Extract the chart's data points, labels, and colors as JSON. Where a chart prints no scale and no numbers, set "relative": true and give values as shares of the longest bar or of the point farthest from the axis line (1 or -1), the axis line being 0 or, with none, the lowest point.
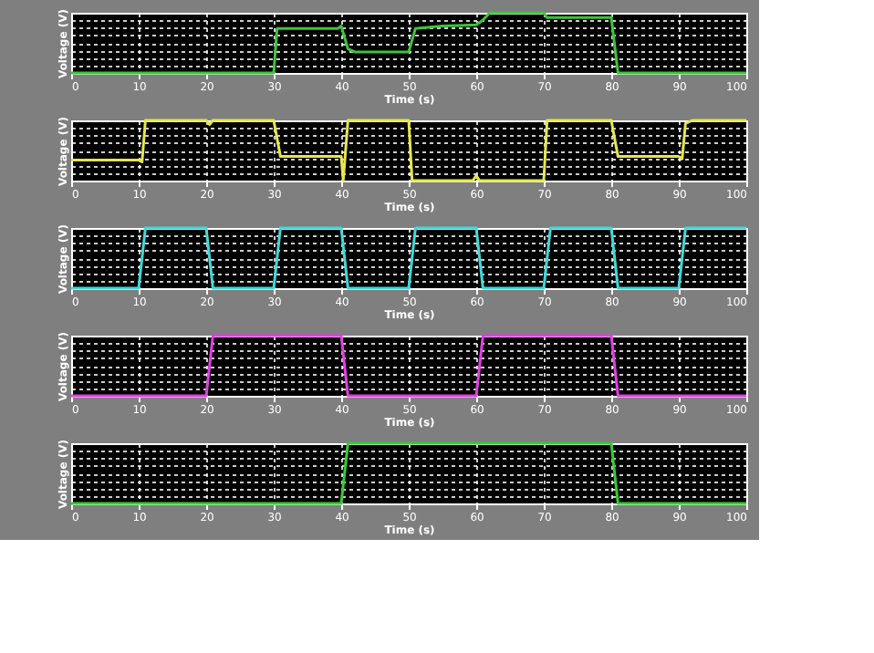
{
  "chart_data": [
    {
      "type": "line",
      "relative": true,
      "xlabel": "Time (s)",
      "ylabel": "Voltage (V)",
      "xlim": [
        0,
        100
      ],
      "xticks": [
        0,
        10,
        20,
        30,
        40,
        50,
        60,
        70,
        80,
        90,
        100
      ],
      "grid": true,
      "tick_labels": "x",
      "series": [
        {
          "color": "#3ec43e",
          "x": [
            0,
            30,
            30.5,
            39.5,
            40,
            41,
            42,
            50,
            51,
            55,
            60,
            61,
            62,
            70,
            70.5,
            80,
            81,
            100
          ],
          "values": [
            0,
            0,
            0.74,
            0.74,
            0.78,
            0.4,
            0.35,
            0.35,
            0.74,
            0.78,
            0.8,
            0.88,
            1,
            1,
            0.92,
            0.92,
            0,
            0
          ]
        }
      ]
    },
    {
      "type": "line",
      "relative": true,
      "xlabel": "Time (s)",
      "ylabel": "Voltage (V)",
      "xlim": [
        0,
        100
      ],
      "xticks": [
        0,
        10,
        20,
        30,
        40,
        50,
        60,
        70,
        80,
        90,
        100
      ],
      "grid": true,
      "tick_labels": "x",
      "series": [
        {
          "color": "#e6e64d",
          "x": [
            0,
            10,
            10.5,
            11,
            20,
            20.5,
            21,
            30,
            31,
            40,
            40.3,
            41,
            50,
            50.5,
            59.5,
            60,
            60.5,
            70,
            70.5,
            80,
            81,
            90,
            90.5,
            91,
            92,
            100
          ],
          "values": [
            0.34,
            0.34,
            0.31,
            1,
            1,
            0.93,
            1,
            1,
            0.4,
            0.4,
            0,
            1,
            1,
            0,
            0,
            0.08,
            0,
            0,
            1,
            1,
            0.4,
            0.4,
            0.36,
            0.95,
            1,
            1
          ]
        }
      ]
    },
    {
      "type": "line",
      "relative": true,
      "xlabel": "Time (s)",
      "ylabel": "Voltage (V)",
      "xlim": [
        0,
        100
      ],
      "xticks": [
        0,
        10,
        20,
        30,
        40,
        50,
        60,
        70,
        80,
        90,
        100
      ],
      "grid": true,
      "tick_labels": "x",
      "series": [
        {
          "color": "#40d8d8",
          "x": [
            0,
            10,
            11,
            20,
            21,
            30,
            31,
            40,
            41,
            50,
            51,
            60,
            61,
            70,
            71,
            80,
            81,
            90,
            91,
            100
          ],
          "values": [
            0,
            0,
            1,
            1,
            0,
            0,
            1,
            1,
            0,
            0,
            1,
            1,
            0,
            0,
            1,
            1,
            0,
            0,
            1,
            1
          ]
        }
      ]
    },
    {
      "type": "line",
      "relative": true,
      "xlabel": "Time (s)",
      "ylabel": "Voltage (V)",
      "xlim": [
        0,
        100
      ],
      "xticks": [
        0,
        10,
        20,
        30,
        40,
        50,
        60,
        70,
        80,
        90,
        100
      ],
      "grid": true,
      "tick_labels": "x",
      "series": [
        {
          "color": "#e040e0",
          "x": [
            0,
            20,
            21,
            40,
            41,
            60,
            61,
            80,
            81,
            100
          ],
          "values": [
            0,
            0,
            1,
            1,
            0,
            0,
            1,
            1,
            0,
            0
          ]
        }
      ]
    },
    {
      "type": "line",
      "relative": true,
      "xlabel": "Time (s)",
      "ylabel": "Voltage (V)",
      "xlim": [
        0,
        100
      ],
      "xticks": [
        0,
        10,
        20,
        30,
        40,
        50,
        60,
        70,
        80,
        90,
        100
      ],
      "grid": true,
      "tick_labels": "x",
      "series": [
        {
          "color": "#33cc33",
          "x": [
            0,
            40,
            41,
            80,
            81,
            100
          ],
          "values": [
            0,
            0,
            1,
            1,
            0,
            0
          ]
        }
      ]
    }
  ]
}
